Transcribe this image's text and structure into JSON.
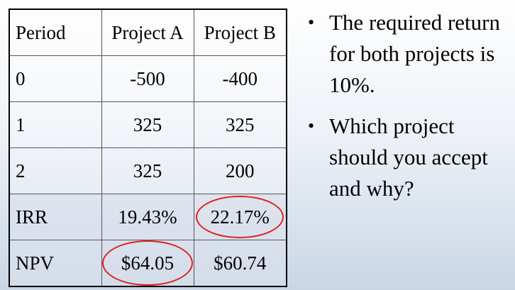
{
  "table": {
    "headers": [
      "Period",
      "Project A",
      "Project B"
    ],
    "rows": [
      {
        "period": "0",
        "a": "-500",
        "b": "-400"
      },
      {
        "period": "1",
        "a": "325",
        "b": "325"
      },
      {
        "period": "2",
        "a": "325",
        "b": "200"
      },
      {
        "period": "IRR",
        "a": "19.43%",
        "b": "22.17%"
      },
      {
        "period": "NPV",
        "a": "$64.05",
        "b": "$60.74"
      }
    ]
  },
  "bullets": [
    "The required return for both projects is 10%.",
    "Which project should you accept and why?"
  ],
  "bullet_symbol": "•",
  "highlight_color": "#e02020"
}
